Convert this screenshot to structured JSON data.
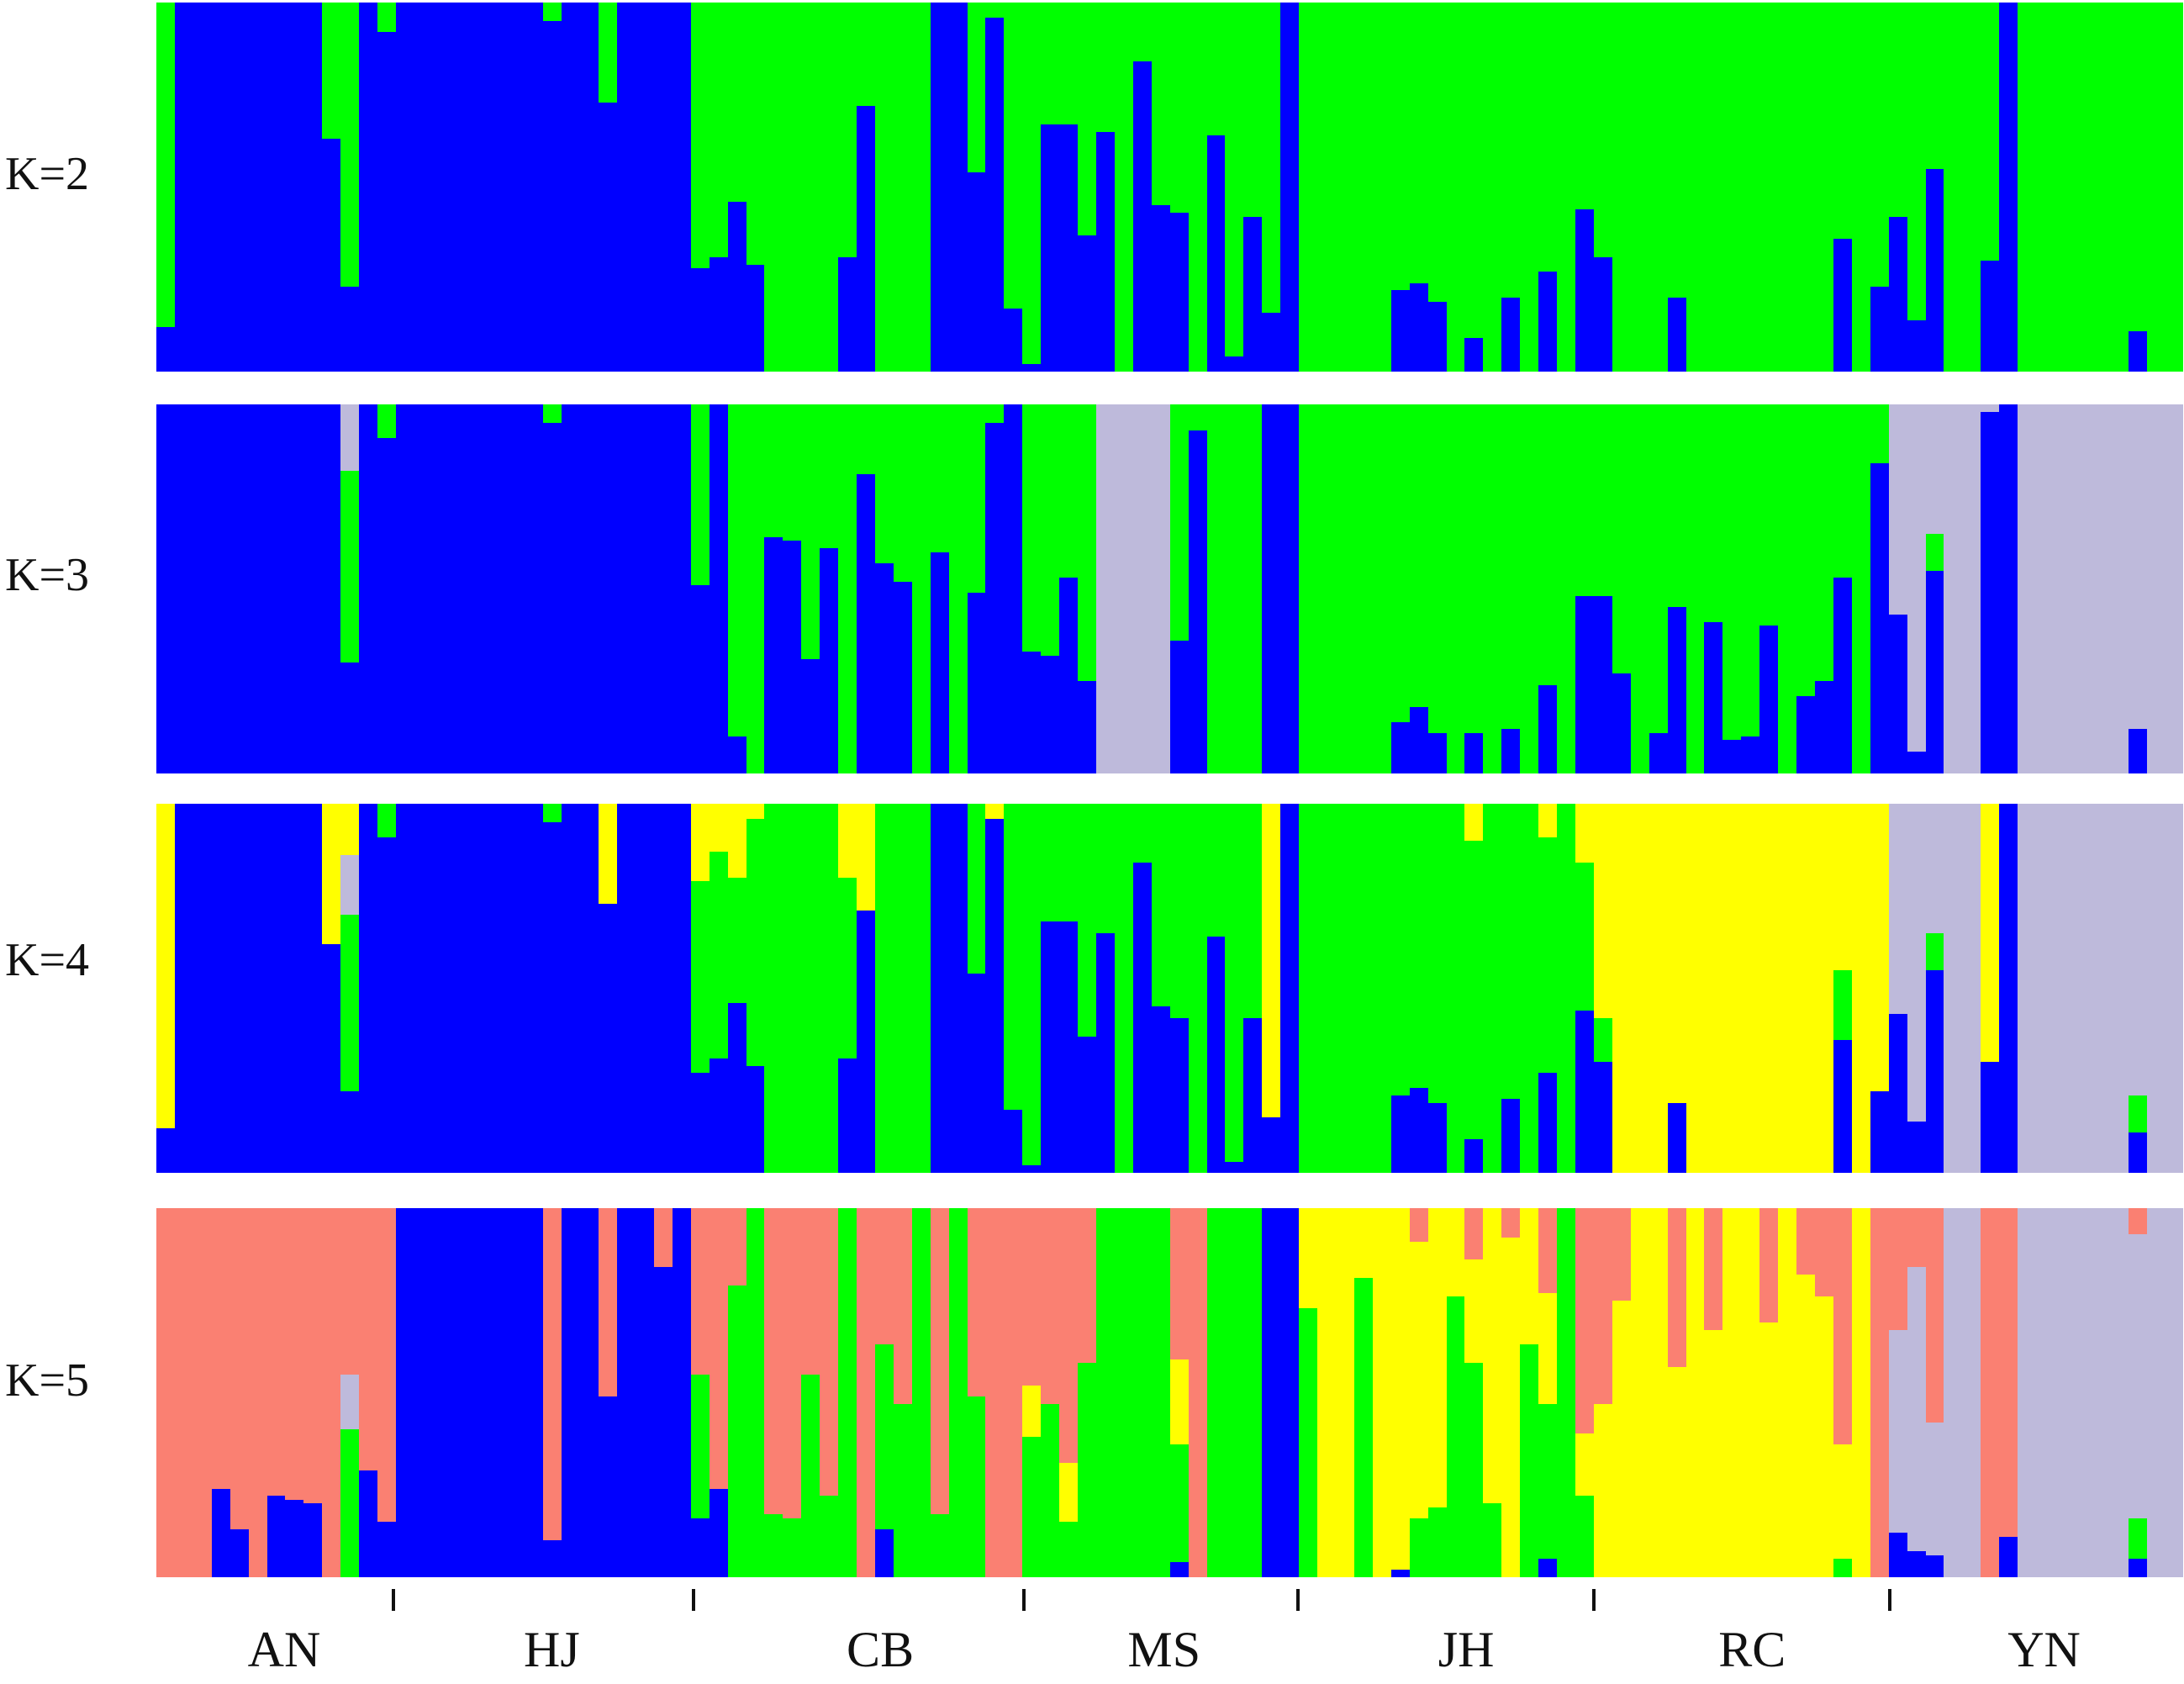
{
  "chart_data": {
    "type": "bar",
    "subtype": "stacked-admixture-structure-plot",
    "title": "",
    "xlabel": "",
    "ylabel": "",
    "ylim": [
      0,
      1
    ],
    "grid": false,
    "legend": "none",
    "colors": {
      "B": "#0000ff",
      "G": "#00ff00",
      "L": "#bebadb",
      "Y": "#ffff00",
      "S": "#fa8072"
    },
    "encoding_note": "Each column string lists cluster membership from top to bottom: a color key followed by its cumulative end fraction; the final key fills to 1.0.",
    "populations": [
      {
        "name": "AN",
        "center": 0.063
      },
      {
        "name": "HJ",
        "center": 0.195
      },
      {
        "name": "CB",
        "center": 0.357
      },
      {
        "name": "MS",
        "center": 0.497
      },
      {
        "name": "JH",
        "center": 0.646
      },
      {
        "name": "RC",
        "center": 0.787
      },
      {
        "name": "YN",
        "center": 0.931
      }
    ],
    "boundaries": [
      0.117,
      0.265,
      0.428,
      0.563,
      0.709,
      0.855
    ],
    "panels": [
      {
        "label": "K=2",
        "columns": [
          "G.88B",
          "B",
          "B",
          "B",
          "B",
          "B",
          "B",
          "B",
          "B",
          "G.37B",
          "G.77B",
          "B",
          "G.08B",
          "B",
          "B",
          "B",
          "B",
          "B",
          "B",
          "B",
          "B",
          "G.05B",
          "B",
          "B",
          "G.27B",
          "B",
          "B",
          "B",
          "B",
          "G.72B",
          "G.69B",
          "G.54B",
          "G.71B",
          "G",
          "G",
          "G",
          "G",
          "G.69B",
          "G.28B",
          "G",
          "G",
          "G",
          "B",
          "B",
          "G.46B",
          "G.04B",
          "G.83B",
          "G.98B",
          "G.33B",
          "G.33B",
          "G.63B",
          "G.35B",
          "G",
          "G.16B",
          "G.55B",
          "G.57B",
          "G",
          "G.36B",
          "G.96B",
          "G.58B",
          "G.84B",
          "B",
          "G",
          "G",
          "G",
          "G",
          "G",
          "G.78B",
          "G.76B",
          "G.81B",
          "G",
          "G.91B",
          "G",
          "G.80B",
          "G",
          "G.73B",
          "G",
          "G.56B",
          "G.69B",
          "G",
          "G",
          "G",
          "G.80B",
          "G",
          "G",
          "G",
          "G",
          "G",
          "G",
          "G",
          "G",
          "G.64B",
          "G",
          "G.77B",
          "G.58B",
          "G.86B",
          "G.45B",
          "G",
          "G",
          "G.70B",
          "B",
          "G",
          "G",
          "G",
          "G",
          "G",
          "G",
          "G.89B",
          "G",
          "G"
        ]
      },
      {
        "label": "K=3",
        "columns": [
          "B",
          "B",
          "B",
          "B",
          "B",
          "B",
          "B",
          "B",
          "B",
          "B",
          "L.18G.70B",
          "B",
          "G.09B",
          "B",
          "B",
          "B",
          "B",
          "B",
          "B",
          "B",
          "B",
          "G.05B",
          "B",
          "B",
          "B",
          "B",
          "B",
          "B",
          "B",
          "G.49B",
          "B",
          "G.90B",
          "G",
          "G.36B",
          "G.37B",
          "G.69B",
          "G.39B",
          "G",
          "G.19B",
          "G.43B",
          "G.48B",
          "G",
          "G.40B",
          "G",
          "G.51B",
          "G.05B",
          "B",
          "G.67B",
          "G.68B",
          "G.47B",
          "G.75B",
          "L",
          "L",
          "L",
          "L",
          "G.64B",
          "G.07B",
          "G",
          "G",
          "G",
          "B",
          "B",
          "G",
          "G",
          "G",
          "G",
          "G",
          "G.86B",
          "G.82B",
          "G.89B",
          "G",
          "G.89B",
          "G",
          "G.88B",
          "G",
          "G.76B",
          "G",
          "G.52B",
          "G.52B",
          "G.73B",
          "G",
          "G.89B",
          "G.55B",
          "G",
          "G.59B",
          "G.91B",
          "G.90B",
          "G.60B",
          "G",
          "G.79B",
          "G.75B",
          "G.47B",
          "G",
          "G.16B",
          "L.57B",
          "L.94B",
          "L.35G.45B",
          "L",
          "L",
          "L.02B",
          "B",
          "L",
          "L",
          "L",
          "L",
          "L",
          "L",
          "L.88B",
          "L",
          "L"
        ]
      },
      {
        "label": "K=4",
        "columns": [
          "Y.88B",
          "B",
          "B",
          "B",
          "B",
          "B",
          "B",
          "B",
          "B",
          "Y.38B",
          "Y.14L.30G.78B",
          "B",
          "G.09B",
          "B",
          "B",
          "B",
          "B",
          "B",
          "B",
          "B",
          "B",
          "G.05B",
          "B",
          "B",
          "Y.27B",
          "B",
          "B",
          "B",
          "B",
          "Y.21G.73B",
          "Y.13G.69B",
          "Y.20G.54B",
          "Y.04G.71B",
          "G",
          "G",
          "G",
          "G",
          "Y.20G.69B",
          "Y.29B",
          "G",
          "G",
          "G",
          "B",
          "B",
          "G.46B",
          "Y.04B",
          "G.83B",
          "G.98B",
          "G.32B",
          "G.32B",
          "G.63B",
          "G.35B",
          "G",
          "G.16B",
          "G.55B",
          "G.58B",
          "G",
          "G.36B",
          "G.97B",
          "G.58B",
          "Y.85B",
          "B",
          "G",
          "G",
          "G",
          "G",
          "G",
          "G.79B",
          "G.77B",
          "G.81B",
          "G",
          "Y.10G.91B",
          "G",
          "G.80B",
          "G",
          "Y.09G.73B",
          "G",
          "Y.16G.56B",
          "Y.58G.70B",
          "Y",
          "Y",
          "Y",
          "Y.81B",
          "Y",
          "Y",
          "Y",
          "Y",
          "Y",
          "Y",
          "Y",
          "Y",
          "Y.45G.64B",
          "Y",
          "Y.78B",
          "L.57B",
          "L.86B",
          "L.35G.45B",
          "L",
          "L",
          "Y.70B",
          "B",
          "L",
          "L",
          "L",
          "L",
          "L",
          "L",
          "L.79G.89B",
          "L",
          "L"
        ]
      },
      {
        "label": "K=5",
        "columns": [
          "S",
          "S",
          "S",
          "S.76B",
          "S.87B",
          "S",
          "S.78B",
          "S.79B",
          "S.80B",
          "S",
          "S.45L.60G",
          "S.71B",
          "S.85B",
          "B",
          "B",
          "B",
          "B",
          "B",
          "B",
          "B",
          "B",
          "S.90B",
          "B",
          "B",
          "S.51B",
          "B",
          "B",
          "S.16B",
          "B",
          "S.45G.84B",
          "S.76B",
          "S.21G",
          "G",
          "S.83G",
          "S.84G",
          "S.45G",
          "S.78G",
          "G",
          "S",
          "S.37G.87B",
          "S.53G",
          "G",
          "S.83G",
          "G",
          "S.51G",
          "S",
          "S",
          "S.48Y.62G",
          "S.53G",
          "S.69Y.85G",
          "S.42G",
          "G",
          "G",
          "G",
          "G",
          "S.41Y.64G.96B",
          "S",
          "G",
          "G",
          "G",
          "B",
          "B",
          "Y.27G",
          "Y",
          "Y",
          "Y.19G",
          "Y",
          "Y.98B",
          "S.09Y.84G",
          "Y.81G",
          "Y.24G",
          "S.14Y.42G",
          "Y.80G",
          "S.08Y",
          "Y.37G",
          "S.23Y.53G.95B",
          "G",
          "S.61Y.78G",
          "S.53Y",
          "S.25Y",
          "Y",
          "Y",
          "S.43Y",
          "Y",
          "S.33Y",
          "Y",
          "Y",
          "S.31Y",
          "Y",
          "S.18Y",
          "S.24Y",
          "S.64Y.95G",
          "Y",
          "S",
          "S.33L.88B",
          "S.16L.93B",
          "S.58L.94B",
          "L",
          "L",
          "S",
          "S.89B",
          "L",
          "L",
          "L",
          "L",
          "L",
          "L",
          "S.07L.84G.95B",
          "L",
          "L"
        ]
      }
    ]
  }
}
